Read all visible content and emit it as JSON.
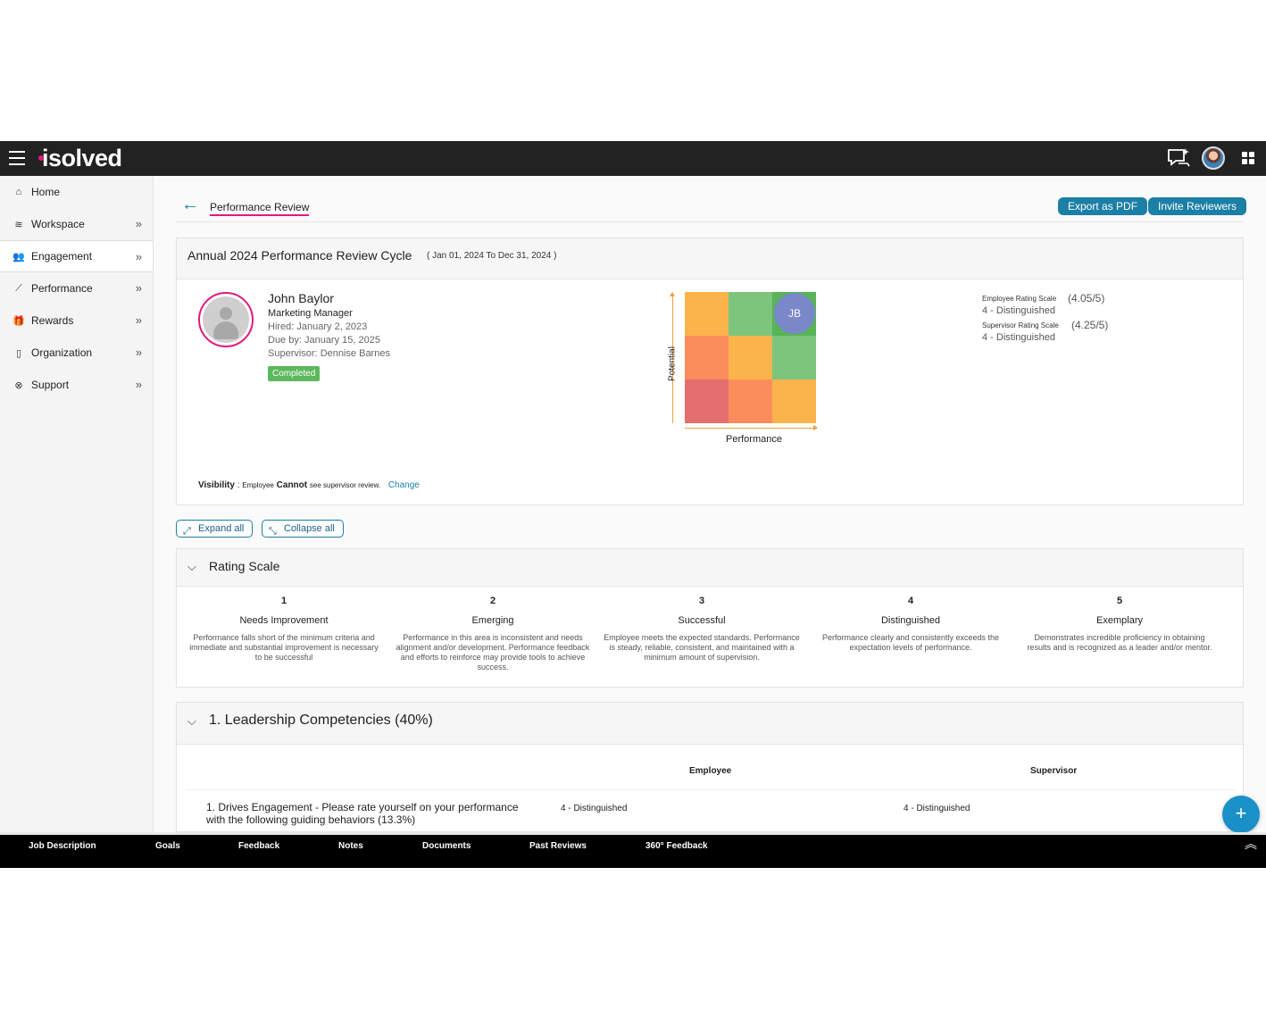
{
  "app": {
    "logo_text": "isolved",
    "brand_color": "#e0197d",
    "accent_color": "#1b7fa6"
  },
  "topbar": {
    "menu_icon": "hamburger-icon",
    "chat_icon": "chat-sparkle-icon",
    "avatar": "user-avatar",
    "apps_icon": "grid-apps-icon"
  },
  "sidebar": {
    "items": [
      {
        "label": "Home",
        "icon": "home-icon"
      },
      {
        "label": "Workspace",
        "icon": "layers-icon"
      },
      {
        "label": "Engagement",
        "icon": "people-icon"
      },
      {
        "label": "Performance",
        "icon": "chart-icon"
      },
      {
        "label": "Rewards",
        "icon": "gift-icon"
      },
      {
        "label": "Organization",
        "icon": "building-icon"
      },
      {
        "label": "Support",
        "icon": "lifebuoy-icon"
      }
    ]
  },
  "header": {
    "title": "Performance Review",
    "export_label": "Export as PDF",
    "invite_label": "Invite Reviewers"
  },
  "cycle": {
    "title": "Annual 2024 Performance Review Cycle",
    "range": "( Jan 01, 2024 To Dec 31, 2024 )"
  },
  "employee": {
    "name": "John Baylor",
    "job_title": "Marketing Manager",
    "hired": "Hired: January 2, 2023",
    "due": "Due by: January 15, 2025",
    "supervisor": "Supervisor: Dennise Barnes",
    "status": "Completed"
  },
  "nine_box": {
    "x_label": "Performance",
    "y_label": "Potential",
    "marker": "JB",
    "marker_position": {
      "performance": 3,
      "potential": 3
    },
    "cell_colors": [
      "#fbb44c",
      "#7dc47d",
      "#57b457",
      "#fb8c5c",
      "#fbb44c",
      "#7dc47d",
      "#e46f6f",
      "#fb8c5c",
      "#fbb44c"
    ]
  },
  "ratings": {
    "employee_label": "Employee Rating Scale",
    "employee_score": "(4.05/5)",
    "employee_level": "4 - Distinguished",
    "supervisor_label": "Supervisor Rating Scale",
    "supervisor_score": "(4.25/5)",
    "supervisor_level": "4 - Distinguished"
  },
  "visibility": {
    "label": "Visibility",
    "prefix": "Employee",
    "emphasis": "Cannot",
    "suffix": "see supervisor review.",
    "change": "Change"
  },
  "controls": {
    "expand": "Expand all",
    "collapse": "Collapse all"
  },
  "rating_scale": {
    "title": "Rating Scale",
    "levels": [
      {
        "num": "1",
        "name": "Needs Improvement",
        "desc": "Performance falls short of the minimum criteria and immediate and substantial improvement is necessary to be successful"
      },
      {
        "num": "2",
        "name": "Emerging",
        "desc": "Performance in this area is inconsistent and needs alignment and/or development. Performance feedback and efforts to reinforce may provide tools to achieve success."
      },
      {
        "num": "3",
        "name": "Successful",
        "desc": "Employee meets the expected standards. Performance is steady, reliable, consistent, and maintained with a minimum amount of supervision."
      },
      {
        "num": "4",
        "name": "Distinguished",
        "desc": "Performance clearly and consistently exceeds the expectation levels of performance."
      },
      {
        "num": "5",
        "name": "Exemplary",
        "desc": "Demonstrates incredible proficiency in obtaining results and is recognized as a leader and/or mentor."
      }
    ]
  },
  "leadership": {
    "title": "1.  Leadership Competencies (40%)",
    "col_employee": "Employee",
    "col_supervisor": "Supervisor",
    "question": "1. Drives Engagement - Please rate yourself on your performance with the following guiding behaviors (13.3%)",
    "employee_rating": "4 - Distinguished",
    "supervisor_rating": "4 - Distinguished"
  },
  "fab": {
    "label": "+"
  },
  "bottom_tabs": [
    "Job Description",
    "Goals",
    "Feedback",
    "Notes",
    "Documents",
    "Past Reviews",
    "360° Feedback"
  ]
}
